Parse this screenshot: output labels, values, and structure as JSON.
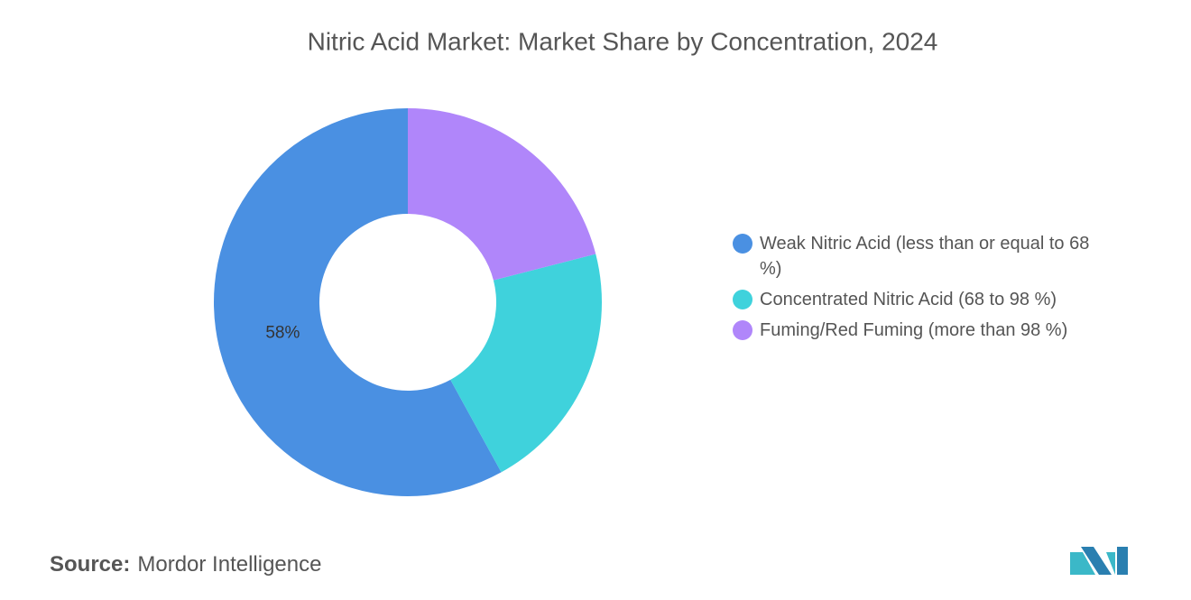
{
  "chart_data": {
    "type": "donut",
    "title": "Nitric Acid Market: Market Share by Concentration, 2024",
    "categories": [
      "Weak Nitric Acid (less than or equal to 68 %)",
      "Concentrated Nitric Acid (68 to 98 %)",
      "Fuming/Red Fuming (more than 98 %)"
    ],
    "values": [
      58,
      21,
      21
    ],
    "value_labels": [
      "58%",
      null,
      null
    ],
    "colors": [
      "#4a90e2",
      "#3fd2dc",
      "#b086fa"
    ],
    "legend": "right",
    "source_label": "Source:",
    "source": "Mordor Intelligence"
  }
}
